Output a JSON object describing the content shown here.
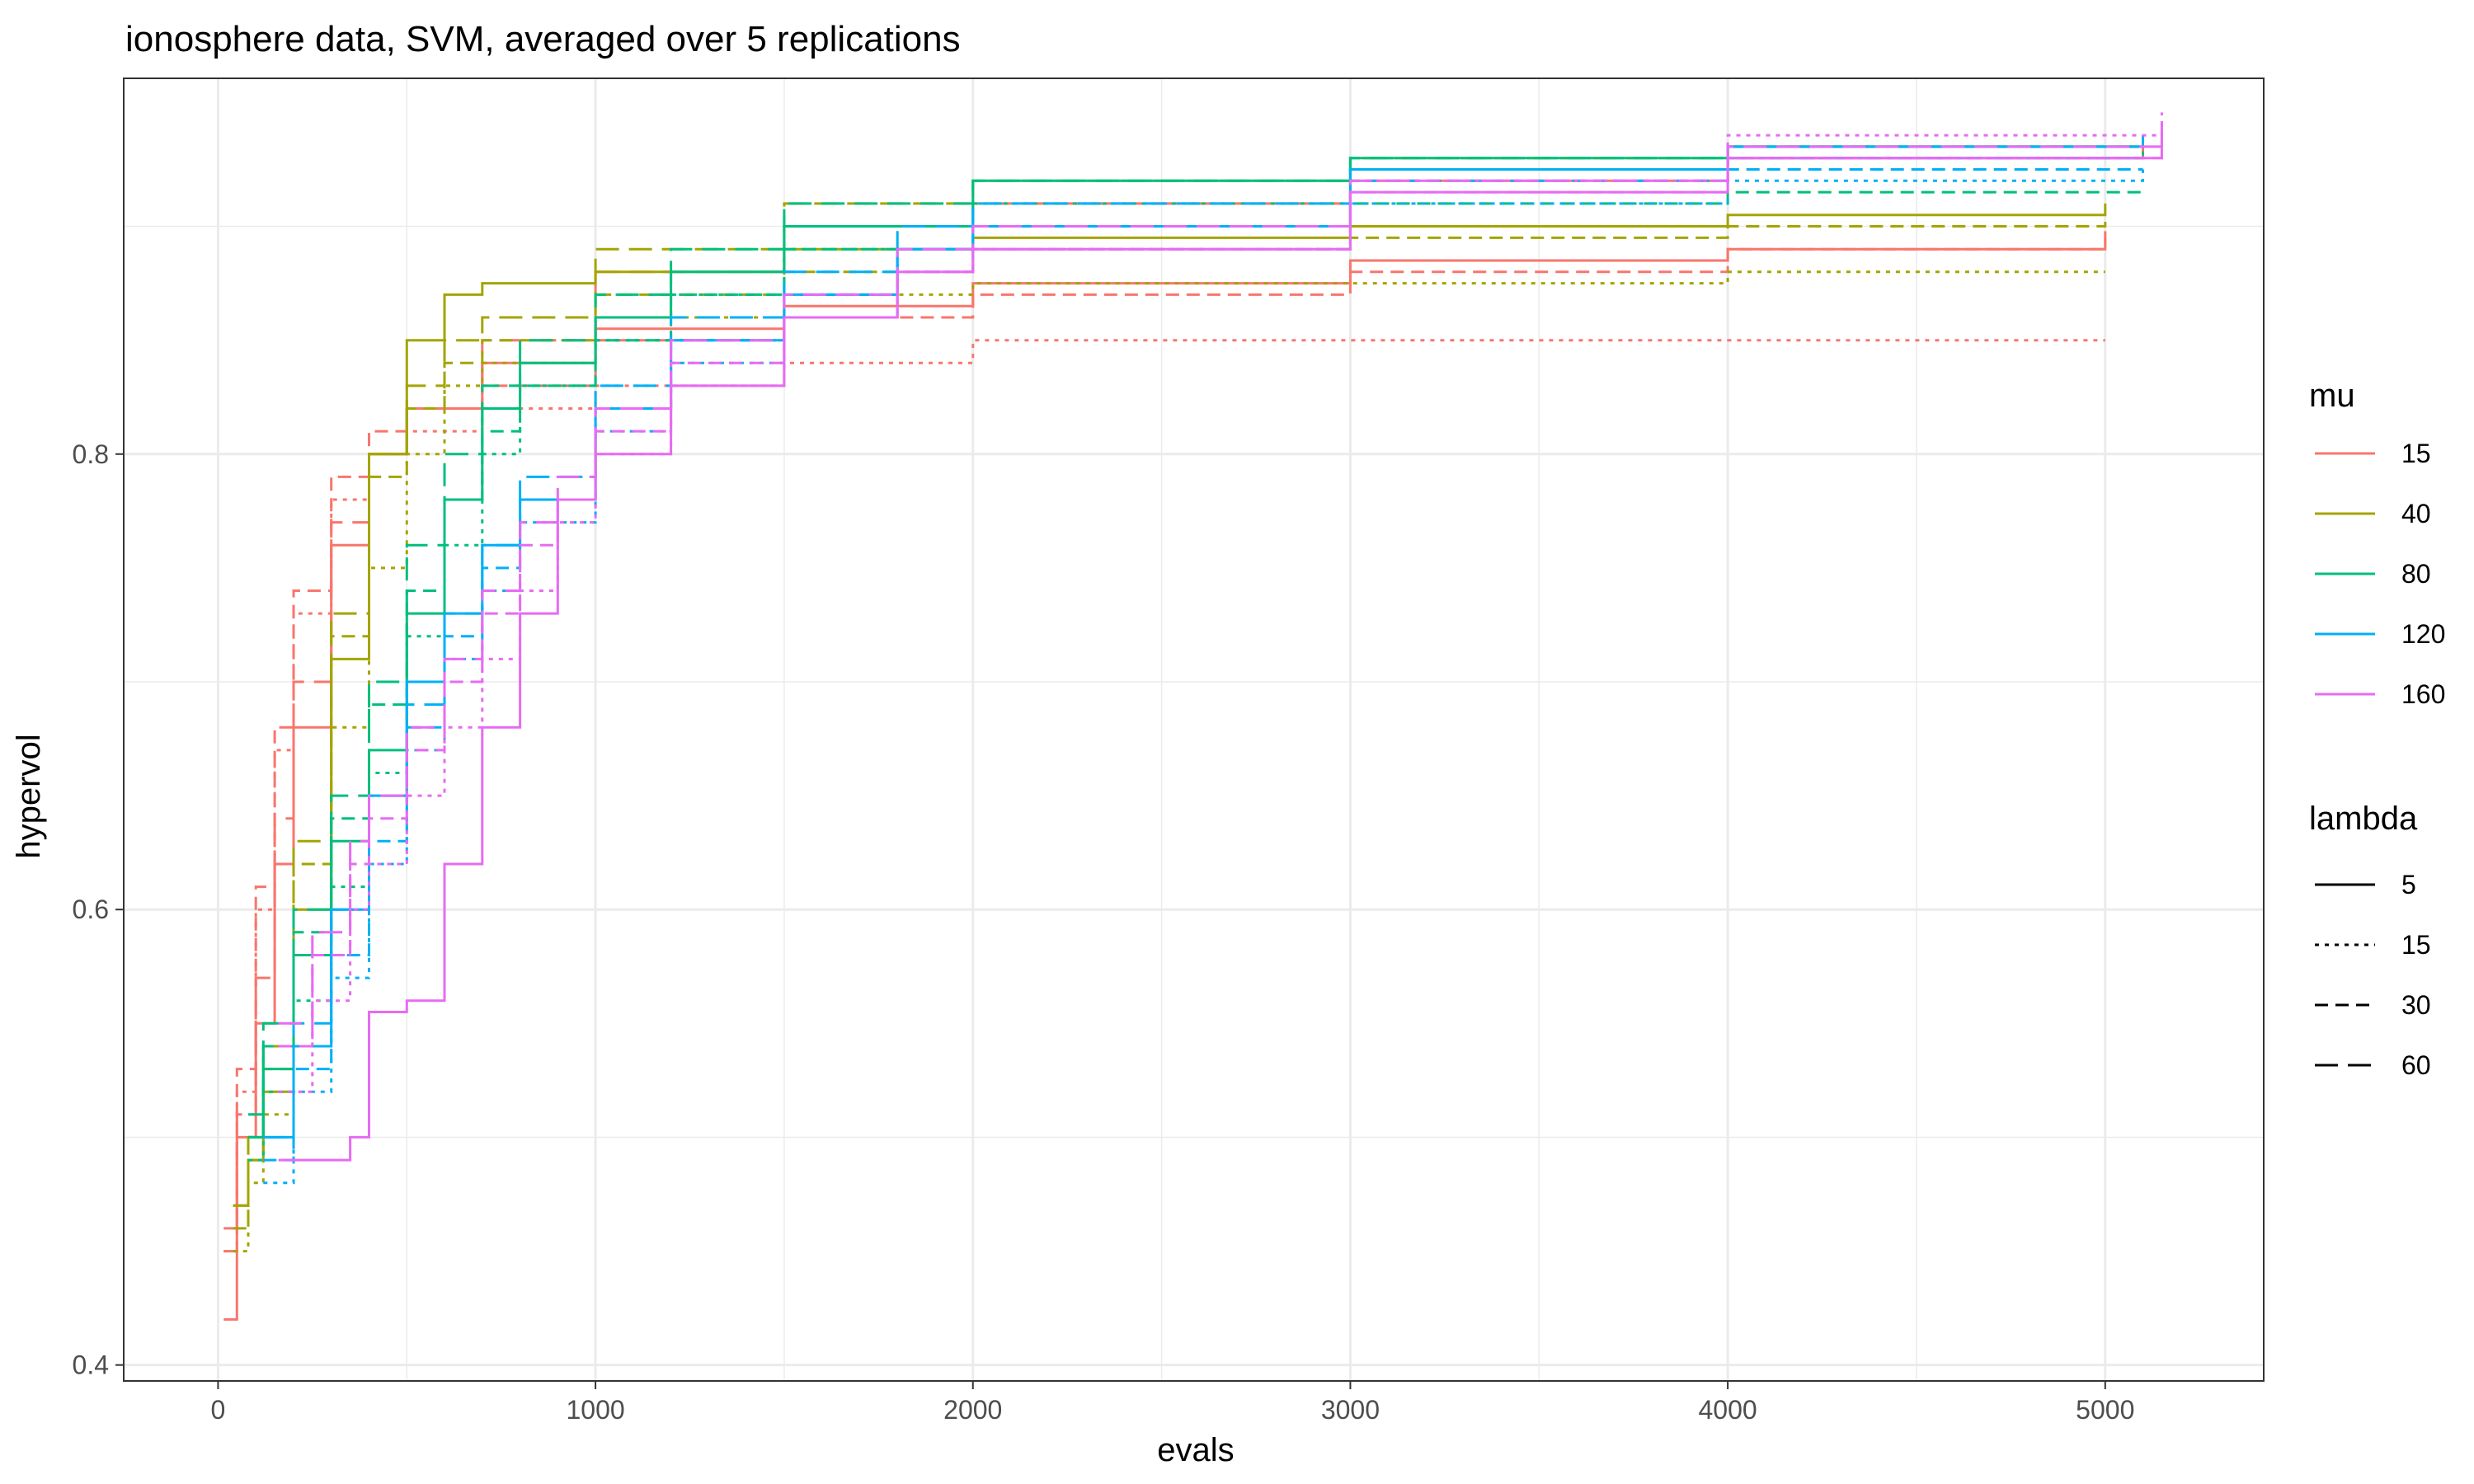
{
  "chart_data": {
    "type": "line",
    "title": "ionosphere data, SVM, averaged over 5 replications",
    "xlabel": "evals",
    "ylabel": "hypervol",
    "xlim": [
      -250,
      5420
    ],
    "ylim": [
      0.393,
      0.965
    ],
    "x_ticks": [
      0,
      1000,
      2000,
      3000,
      4000,
      5000
    ],
    "y_ticks": [
      0.4,
      0.6,
      0.8
    ],
    "grid": true,
    "legend_position": "right",
    "color_legend": {
      "title": "mu",
      "entries": [
        {
          "label": "15",
          "color": "#F8766D"
        },
        {
          "label": "40",
          "color": "#A3A500"
        },
        {
          "label": "80",
          "color": "#00BF7D"
        },
        {
          "label": "120",
          "color": "#00B0F6"
        },
        {
          "label": "160",
          "color": "#E76BF3"
        }
      ]
    },
    "linetype_legend": {
      "title": "lambda",
      "entries": [
        {
          "label": "5",
          "dash": "solid"
        },
        {
          "label": "15",
          "dash": "dotted"
        },
        {
          "label": "30",
          "dash": "dashed"
        },
        {
          "label": "60",
          "dash": "longdash"
        }
      ]
    },
    "series": [
      {
        "mu": "15",
        "lambda": "5",
        "x": [
          15,
          50,
          100,
          150,
          200,
          300,
          400,
          500,
          700,
          1000,
          1500,
          2000,
          3000,
          4000,
          5000
        ],
        "y": [
          0.42,
          0.5,
          0.55,
          0.62,
          0.68,
          0.76,
          0.8,
          0.82,
          0.84,
          0.855,
          0.865,
          0.875,
          0.885,
          0.89,
          0.895
        ]
      },
      {
        "mu": "15",
        "lambda": "15",
        "x": [
          15,
          50,
          100,
          150,
          200,
          300,
          400,
          500,
          700,
          1000,
          1500,
          2000,
          3000,
          4000,
          5000
        ],
        "y": [
          0.45,
          0.52,
          0.6,
          0.67,
          0.73,
          0.78,
          0.8,
          0.81,
          0.82,
          0.83,
          0.84,
          0.85,
          0.85,
          0.85,
          0.85
        ]
      },
      {
        "mu": "15",
        "lambda": "30",
        "x": [
          15,
          50,
          100,
          150,
          200,
          300,
          400,
          500,
          700,
          1000,
          1500,
          2000,
          3000,
          4000,
          5000
        ],
        "y": [
          0.46,
          0.53,
          0.61,
          0.68,
          0.74,
          0.79,
          0.81,
          0.82,
          0.83,
          0.85,
          0.86,
          0.87,
          0.88,
          0.89,
          0.9
        ]
      },
      {
        "mu": "15",
        "lambda": "60",
        "x": [
          15,
          50,
          100,
          150,
          200,
          300,
          400,
          500,
          700,
          1000,
          1500,
          2000,
          3000,
          4000,
          5100
        ],
        "y": [
          0.45,
          0.51,
          0.57,
          0.64,
          0.7,
          0.77,
          0.8,
          0.82,
          0.85,
          0.88,
          0.9,
          0.91,
          0.92,
          0.93,
          0.935
        ]
      },
      {
        "mu": "40",
        "lambda": "5",
        "x": [
          40,
          80,
          120,
          200,
          300,
          400,
          500,
          600,
          700,
          1000,
          1500,
          2000,
          3000,
          4000,
          5000
        ],
        "y": [
          0.47,
          0.49,
          0.52,
          0.6,
          0.71,
          0.8,
          0.85,
          0.87,
          0.875,
          0.88,
          0.89,
          0.895,
          0.9,
          0.905,
          0.91
        ]
      },
      {
        "mu": "40",
        "lambda": "15",
        "x": [
          40,
          80,
          120,
          200,
          300,
          400,
          500,
          600,
          700,
          1000,
          1500,
          2000,
          3000,
          4000,
          5000
        ],
        "y": [
          0.45,
          0.48,
          0.51,
          0.58,
          0.68,
          0.75,
          0.8,
          0.83,
          0.84,
          0.86,
          0.87,
          0.875,
          0.875,
          0.88,
          0.88
        ]
      },
      {
        "mu": "40",
        "lambda": "30",
        "x": [
          40,
          80,
          120,
          200,
          300,
          400,
          500,
          600,
          700,
          1000,
          1500,
          2000,
          3000,
          4000,
          5000
        ],
        "y": [
          0.46,
          0.49,
          0.53,
          0.62,
          0.72,
          0.79,
          0.82,
          0.84,
          0.85,
          0.87,
          0.88,
          0.89,
          0.895,
          0.9,
          0.905
        ]
      },
      {
        "mu": "40",
        "lambda": "60",
        "x": [
          40,
          80,
          120,
          200,
          300,
          400,
          500,
          600,
          700,
          1000,
          1500,
          2000,
          3000,
          4000,
          5100
        ],
        "y": [
          0.47,
          0.5,
          0.54,
          0.63,
          0.73,
          0.8,
          0.83,
          0.85,
          0.86,
          0.89,
          0.91,
          0.92,
          0.93,
          0.935,
          0.935
        ]
      },
      {
        "mu": "80",
        "lambda": "5",
        "x": [
          80,
          120,
          200,
          300,
          400,
          500,
          600,
          700,
          800,
          1000,
          1200,
          1500,
          2000,
          3000,
          4000,
          5100
        ],
        "y": [
          0.5,
          0.53,
          0.58,
          0.63,
          0.67,
          0.73,
          0.78,
          0.82,
          0.84,
          0.86,
          0.88,
          0.9,
          0.92,
          0.93,
          0.935,
          0.94
        ]
      },
      {
        "mu": "80",
        "lambda": "15",
        "x": [
          80,
          120,
          200,
          300,
          400,
          500,
          600,
          700,
          800,
          1000,
          1200,
          1500,
          2000,
          3000,
          4000,
          5100
        ],
        "y": [
          0.49,
          0.52,
          0.56,
          0.61,
          0.66,
          0.72,
          0.76,
          0.8,
          0.83,
          0.85,
          0.87,
          0.89,
          0.91,
          0.925,
          0.93,
          0.935
        ]
      },
      {
        "mu": "80",
        "lambda": "30",
        "x": [
          80,
          120,
          200,
          300,
          400,
          500,
          600,
          700,
          800,
          1000,
          1200,
          1500,
          2000,
          3000,
          4000,
          5100
        ],
        "y": [
          0.5,
          0.54,
          0.59,
          0.64,
          0.69,
          0.74,
          0.78,
          0.81,
          0.83,
          0.85,
          0.87,
          0.89,
          0.9,
          0.91,
          0.915,
          0.915
        ]
      },
      {
        "mu": "80",
        "lambda": "60",
        "x": [
          80,
          120,
          200,
          300,
          400,
          500,
          600,
          700,
          800,
          1000,
          1200,
          1500,
          2000,
          3000,
          4000,
          5100
        ],
        "y": [
          0.51,
          0.55,
          0.6,
          0.65,
          0.7,
          0.76,
          0.8,
          0.83,
          0.85,
          0.87,
          0.89,
          0.91,
          0.92,
          0.93,
          0.935,
          0.94
        ]
      },
      {
        "mu": "120",
        "lambda": "5",
        "x": [
          120,
          200,
          300,
          400,
          500,
          600,
          700,
          800,
          1000,
          1200,
          1500,
          1800,
          2000,
          3000,
          4000,
          5100
        ],
        "y": [
          0.5,
          0.54,
          0.6,
          0.65,
          0.7,
          0.73,
          0.76,
          0.78,
          0.82,
          0.85,
          0.87,
          0.89,
          0.9,
          0.925,
          0.935,
          0.94
        ]
      },
      {
        "mu": "120",
        "lambda": "15",
        "x": [
          120,
          200,
          300,
          400,
          500,
          600,
          700,
          800,
          1000,
          1200,
          1500,
          1800,
          2000,
          3000,
          4000,
          5100
        ],
        "y": [
          0.48,
          0.52,
          0.57,
          0.62,
          0.67,
          0.71,
          0.74,
          0.77,
          0.81,
          0.84,
          0.86,
          0.88,
          0.89,
          0.91,
          0.92,
          0.925
        ]
      },
      {
        "mu": "120",
        "lambda": "30",
        "x": [
          120,
          200,
          300,
          400,
          500,
          600,
          700,
          800,
          1000,
          1200,
          1500,
          1800,
          2000,
          3000,
          4000,
          5100
        ],
        "y": [
          0.49,
          0.53,
          0.58,
          0.63,
          0.68,
          0.72,
          0.75,
          0.78,
          0.82,
          0.85,
          0.87,
          0.89,
          0.9,
          0.92,
          0.925,
          0.925
        ]
      },
      {
        "mu": "120",
        "lambda": "60",
        "x": [
          120,
          200,
          300,
          400,
          500,
          600,
          700,
          800,
          1000,
          1200,
          1500,
          1800,
          2000,
          3000,
          4000,
          5100
        ],
        "y": [
          0.5,
          0.55,
          0.6,
          0.65,
          0.69,
          0.73,
          0.76,
          0.79,
          0.83,
          0.86,
          0.88,
          0.9,
          0.91,
          0.925,
          0.93,
          0.935
        ]
      },
      {
        "mu": "160",
        "lambda": "5",
        "x": [
          160,
          250,
          350,
          400,
          500,
          600,
          700,
          800,
          900,
          1000,
          1200,
          1500,
          1800,
          2000,
          3000,
          4000,
          5150
        ],
        "y": [
          0.49,
          0.49,
          0.5,
          0.555,
          0.56,
          0.62,
          0.68,
          0.73,
          0.78,
          0.8,
          0.83,
          0.86,
          0.88,
          0.89,
          0.915,
          0.93,
          0.94
        ]
      },
      {
        "mu": "160",
        "lambda": "15",
        "x": [
          160,
          250,
          350,
          400,
          500,
          600,
          700,
          800,
          900,
          1000,
          1200,
          1500,
          1800,
          2000,
          3000,
          4000,
          5150
        ],
        "y": [
          0.52,
          0.56,
          0.6,
          0.62,
          0.65,
          0.68,
          0.71,
          0.74,
          0.77,
          0.8,
          0.83,
          0.86,
          0.88,
          0.89,
          0.92,
          0.94,
          0.95
        ]
      },
      {
        "mu": "160",
        "lambda": "30",
        "x": [
          160,
          250,
          350,
          400,
          500,
          600,
          700,
          800,
          900,
          1000,
          1200,
          1500,
          1800,
          2000,
          3000,
          4000,
          5150
        ],
        "y": [
          0.54,
          0.58,
          0.62,
          0.64,
          0.67,
          0.7,
          0.73,
          0.76,
          0.78,
          0.81,
          0.84,
          0.86,
          0.88,
          0.89,
          0.915,
          0.93,
          0.94
        ]
      },
      {
        "mu": "160",
        "lambda": "60",
        "x": [
          160,
          250,
          350,
          400,
          500,
          600,
          700,
          800,
          900,
          1000,
          1200,
          1500,
          1800,
          2000,
          3000,
          4000,
          5150
        ],
        "y": [
          0.55,
          0.59,
          0.63,
          0.65,
          0.68,
          0.71,
          0.74,
          0.77,
          0.79,
          0.82,
          0.85,
          0.87,
          0.89,
          0.9,
          0.92,
          0.935,
          0.945
        ]
      }
    ]
  }
}
